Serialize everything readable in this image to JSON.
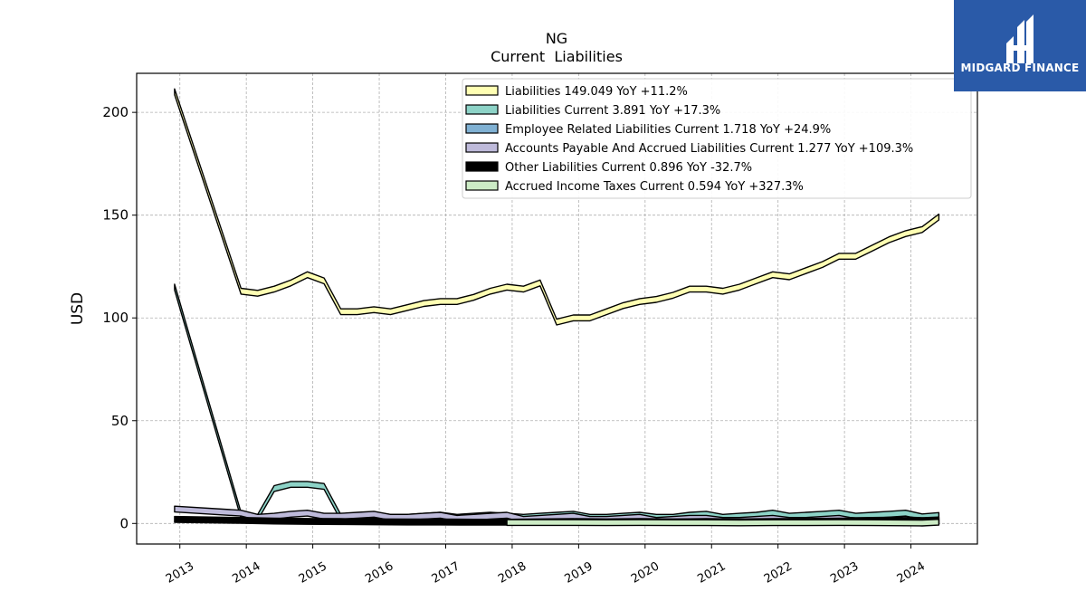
{
  "brand": {
    "name": "MIDGARD FINANCE"
  },
  "chart_data": {
    "type": "area",
    "title": "NG",
    "subtitle": "Current  Liabilities",
    "ylabel": "USD",
    "xlabel": "",
    "ylim": [
      -10,
      219
    ],
    "xlim": [
      2012.35,
      2025.0
    ],
    "yticks": [
      0,
      50,
      100,
      150,
      200
    ],
    "xticks": [
      2013,
      2014,
      2015,
      2016,
      2017,
      2018,
      2019,
      2020,
      2021,
      2022,
      2023,
      2024
    ],
    "grid": true,
    "legend_position": "top-right",
    "series": [
      {
        "name": "Liabilities  149.049 YoY +11.2%",
        "color": "#ffffb3",
        "points": [
          [
            2012.92,
            210
          ],
          [
            2013.92,
            113
          ],
          [
            2014.17,
            112
          ],
          [
            2014.42,
            114
          ],
          [
            2014.67,
            117
          ],
          [
            2014.92,
            121
          ],
          [
            2015.17,
            118
          ],
          [
            2015.42,
            103
          ],
          [
            2015.67,
            103
          ],
          [
            2015.92,
            104
          ],
          [
            2016.17,
            103
          ],
          [
            2016.42,
            105
          ],
          [
            2016.67,
            107
          ],
          [
            2016.92,
            108
          ],
          [
            2017.17,
            108
          ],
          [
            2017.42,
            110
          ],
          [
            2017.67,
            113
          ],
          [
            2017.92,
            115
          ],
          [
            2018.17,
            114
          ],
          [
            2018.42,
            117
          ],
          [
            2018.67,
            98
          ],
          [
            2018.92,
            100
          ],
          [
            2019.17,
            100
          ],
          [
            2019.42,
            103
          ],
          [
            2019.67,
            106
          ],
          [
            2019.92,
            108
          ],
          [
            2020.17,
            109
          ],
          [
            2020.42,
            111
          ],
          [
            2020.67,
            114
          ],
          [
            2020.92,
            114
          ],
          [
            2021.17,
            113
          ],
          [
            2021.42,
            115
          ],
          [
            2021.67,
            118
          ],
          [
            2021.92,
            121
          ],
          [
            2022.17,
            120
          ],
          [
            2022.42,
            123
          ],
          [
            2022.67,
            126
          ],
          [
            2022.92,
            130
          ],
          [
            2023.17,
            130
          ],
          [
            2023.42,
            134
          ],
          [
            2023.67,
            138
          ],
          [
            2023.92,
            141
          ],
          [
            2024.17,
            143
          ],
          [
            2024.42,
            149.049
          ]
        ]
      },
      {
        "name": "Liabilities Current  3.891 YoY +17.3%",
        "color": "#8dd3c7",
        "points": [
          [
            2012.92,
            115
          ],
          [
            2013.92,
            4
          ],
          [
            2014.17,
            3
          ],
          [
            2014.42,
            17
          ],
          [
            2014.67,
            19
          ],
          [
            2014.92,
            19
          ],
          [
            2015.17,
            18
          ],
          [
            2015.42,
            3
          ],
          [
            2015.67,
            3.5
          ],
          [
            2015.92,
            4
          ],
          [
            2016.17,
            3
          ],
          [
            2016.42,
            3
          ],
          [
            2016.67,
            3.5
          ],
          [
            2016.92,
            4
          ],
          [
            2017.17,
            3
          ],
          [
            2017.42,
            3.5
          ],
          [
            2017.67,
            4
          ],
          [
            2017.92,
            3.5
          ],
          [
            2018.17,
            3
          ],
          [
            2018.42,
            3.5
          ],
          [
            2018.67,
            4
          ],
          [
            2018.92,
            4.5
          ],
          [
            2019.17,
            3
          ],
          [
            2019.42,
            3
          ],
          [
            2019.67,
            3.5
          ],
          [
            2019.92,
            4
          ],
          [
            2020.17,
            3
          ],
          [
            2020.42,
            3
          ],
          [
            2020.67,
            4
          ],
          [
            2020.92,
            4.5
          ],
          [
            2021.17,
            3
          ],
          [
            2021.42,
            3.5
          ],
          [
            2021.67,
            4
          ],
          [
            2021.92,
            5
          ],
          [
            2022.17,
            3.5
          ],
          [
            2022.42,
            4
          ],
          [
            2022.67,
            4.5
          ],
          [
            2022.92,
            5
          ],
          [
            2023.17,
            3.5
          ],
          [
            2023.42,
            4
          ],
          [
            2023.67,
            4.5
          ],
          [
            2023.92,
            5
          ],
          [
            2024.17,
            3.2
          ],
          [
            2024.42,
            3.891
          ]
        ]
      },
      {
        "name": "Employee Related Liabilities Current  1.718 YoY +24.9%",
        "color": "#80b1d3",
        "points": [
          [
            2017.92,
            1.5
          ],
          [
            2018.17,
            1.4
          ],
          [
            2018.42,
            1.5
          ],
          [
            2018.67,
            1.6
          ],
          [
            2018.92,
            1.7
          ],
          [
            2019.17,
            1.4
          ],
          [
            2019.42,
            1.4
          ],
          [
            2019.67,
            1.5
          ],
          [
            2019.92,
            1.6
          ],
          [
            2020.17,
            1.4
          ],
          [
            2020.42,
            1.4
          ],
          [
            2020.67,
            1.5
          ],
          [
            2020.92,
            1.6
          ],
          [
            2021.17,
            1.3
          ],
          [
            2021.42,
            1.4
          ],
          [
            2021.67,
            1.5
          ],
          [
            2021.92,
            1.6
          ],
          [
            2022.17,
            1.4
          ],
          [
            2022.42,
            1.5
          ],
          [
            2022.67,
            1.6
          ],
          [
            2022.92,
            1.7
          ],
          [
            2023.17,
            1.4
          ],
          [
            2023.42,
            1.5
          ],
          [
            2023.67,
            1.6
          ],
          [
            2023.92,
            1.7
          ],
          [
            2024.17,
            1.4
          ],
          [
            2024.42,
            1.718
          ]
        ]
      },
      {
        "name": "Accounts Payable And Accrued Liabilities Current  1.277 YoY +109.3%",
        "color": "#bebada",
        "points": [
          [
            2012.92,
            7
          ],
          [
            2013.92,
            5
          ],
          [
            2014.17,
            3
          ],
          [
            2014.42,
            3.5
          ],
          [
            2014.67,
            4.5
          ],
          [
            2014.92,
            5
          ],
          [
            2015.17,
            3.5
          ],
          [
            2015.42,
            3.5
          ],
          [
            2015.67,
            4
          ],
          [
            2015.92,
            4.5
          ],
          [
            2016.17,
            3
          ],
          [
            2016.42,
            3
          ],
          [
            2016.67,
            3.5
          ],
          [
            2016.92,
            4
          ],
          [
            2017.17,
            2.5
          ],
          [
            2017.42,
            3
          ],
          [
            2017.67,
            3.5
          ],
          [
            2017.92,
            4
          ],
          [
            2018.17,
            2
          ],
          [
            2018.42,
            2.5
          ],
          [
            2018.67,
            3
          ],
          [
            2018.92,
            3.5
          ],
          [
            2019.17,
            2
          ],
          [
            2019.42,
            2
          ],
          [
            2019.67,
            2.5
          ],
          [
            2019.92,
            3
          ],
          [
            2020.17,
            1.5
          ],
          [
            2020.42,
            2
          ],
          [
            2020.67,
            2.5
          ],
          [
            2020.92,
            2.5
          ],
          [
            2021.17,
            1.5
          ],
          [
            2021.42,
            1.5
          ],
          [
            2021.67,
            2
          ],
          [
            2021.92,
            2.5
          ],
          [
            2022.17,
            1.5
          ],
          [
            2022.42,
            1.5
          ],
          [
            2022.67,
            2
          ],
          [
            2022.92,
            2.5
          ],
          [
            2023.17,
            1
          ],
          [
            2023.42,
            1
          ],
          [
            2023.67,
            1.5
          ],
          [
            2023.92,
            2
          ],
          [
            2024.17,
            1
          ],
          [
            2024.42,
            1.277
          ]
        ]
      },
      {
        "name": "Other Liabilities Current  0.896 YoY -32.7%",
        "color": "#000000",
        "points": [
          [
            2012.92,
            2
          ],
          [
            2013.92,
            1.5
          ],
          [
            2014.42,
            1.2
          ],
          [
            2014.92,
            1
          ],
          [
            2015.42,
            0.9
          ],
          [
            2015.92,
            0.8
          ],
          [
            2016.42,
            0.7
          ],
          [
            2016.92,
            0.7
          ],
          [
            2017.42,
            0.6
          ],
          [
            2017.92,
            0.6
          ],
          [
            2018.42,
            0.8
          ],
          [
            2018.92,
            0.9
          ],
          [
            2019.42,
            0.8
          ],
          [
            2019.92,
            0.9
          ],
          [
            2020.42,
            0.8
          ],
          [
            2020.92,
            0.9
          ],
          [
            2021.42,
            0.8
          ],
          [
            2021.92,
            0.9
          ],
          [
            2022.42,
            1
          ],
          [
            2022.92,
            1.2
          ],
          [
            2023.42,
            1.1
          ],
          [
            2023.92,
            1.3
          ],
          [
            2024.17,
            1.3
          ],
          [
            2024.42,
            0.896
          ]
        ]
      },
      {
        "name": "Accrued Income Taxes Current  0.594 YoY +327.3%",
        "color": "#ccebc5",
        "points": [
          [
            2017.92,
            0.5
          ],
          [
            2018.42,
            0.5
          ],
          [
            2018.92,
            0.5
          ],
          [
            2019.42,
            0.4
          ],
          [
            2019.92,
            0.5
          ],
          [
            2020.42,
            0.4
          ],
          [
            2020.92,
            0.4
          ],
          [
            2021.42,
            0.3
          ],
          [
            2021.92,
            0.4
          ],
          [
            2022.42,
            0.4
          ],
          [
            2022.92,
            0.5
          ],
          [
            2023.42,
            0.4
          ],
          [
            2023.92,
            0.3
          ],
          [
            2024.17,
            0.2
          ],
          [
            2024.42,
            0.594
          ]
        ]
      }
    ]
  }
}
